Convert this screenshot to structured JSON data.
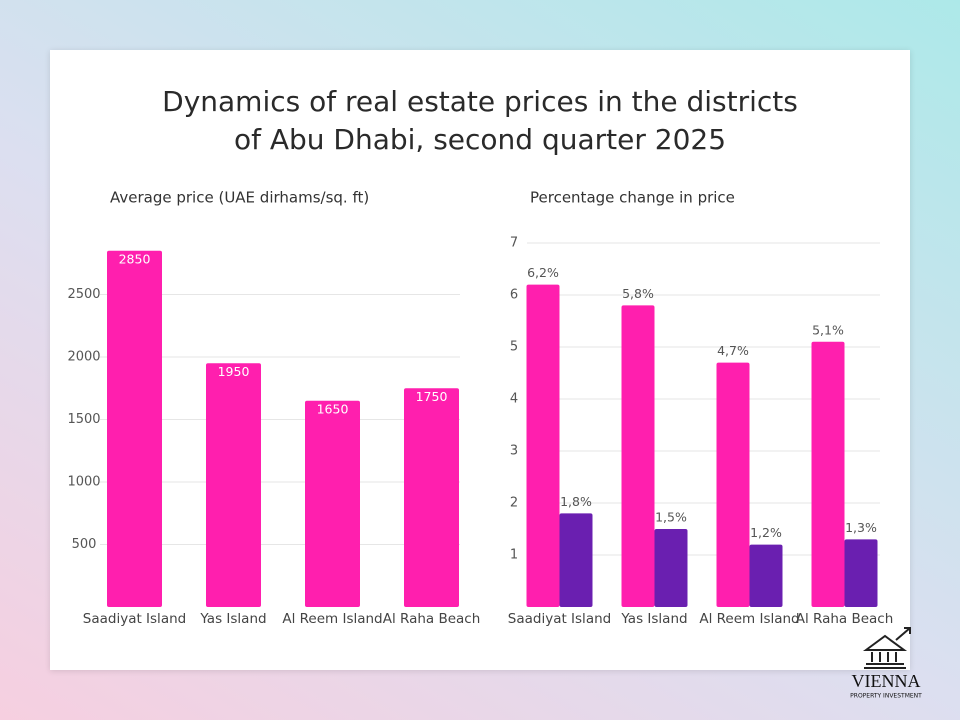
{
  "title_lines": [
    "Dynamics of real estate prices in the districts",
    "of Abu Dhabi, second quarter 2025"
  ],
  "logo": {
    "name": "VIENNA",
    "tagline": "PROPERTY INVESTMENT"
  },
  "chart_data": [
    {
      "type": "bar",
      "title": "Average price (UAE dirhams/sq. ft)",
      "categories": [
        "Saadiyat Island",
        "Yas Island",
        "Al Reem Island",
        "Al Raha Beach"
      ],
      "series": [
        {
          "color": "#ff1fae",
          "values": [
            2850,
            1950,
            1650,
            1750
          ]
        }
      ],
      "ylim": [
        0,
        3000
      ],
      "yticks": [
        500,
        1000,
        1500,
        2000,
        2500
      ],
      "grid": true,
      "value_label_position": "inside"
    },
    {
      "type": "bar",
      "title": "Percentage change in price",
      "categories": [
        "Saadiyat Island",
        "Yas Island",
        "Al Reem Island",
        "Al Raha Beach"
      ],
      "series": [
        {
          "color": "#ff1fae",
          "values": [
            6.2,
            5.8,
            4.7,
            5.1
          ],
          "value_labels": [
            "6,2%",
            "5,8%",
            "4,7%",
            "5,1%"
          ]
        },
        {
          "color": "#6a1fb0",
          "values": [
            1.8,
            1.5,
            1.2,
            1.3
          ],
          "value_labels": [
            "1,8%",
            "1,5%",
            "1,2%",
            "1,3%"
          ]
        }
      ],
      "ylim": [
        0,
        7
      ],
      "yticks": [
        1,
        2,
        3,
        4,
        5,
        6,
        7
      ],
      "grid": true,
      "value_label_position": "above"
    }
  ]
}
